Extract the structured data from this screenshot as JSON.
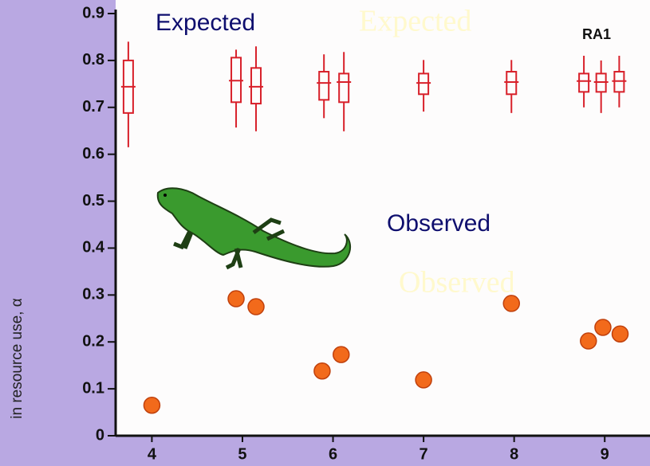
{
  "chart_data": {
    "type": "box",
    "y_label": "in resource use, α",
    "annotation": "RA1",
    "xlim": [
      3.6,
      9.5
    ],
    "ylim": [
      0,
      0.9
    ],
    "xticks": [
      4,
      5,
      6,
      7,
      8,
      9
    ],
    "yticks": [
      0,
      0.1,
      0.2,
      0.3,
      0.4,
      0.5,
      0.6,
      0.7,
      0.8,
      0.9
    ],
    "series": [
      {
        "name": "Expected",
        "type": "box",
        "color": "#d8202a",
        "x": [
          3.74,
          4.93,
          5.15,
          5.9,
          6.12,
          7.0,
          7.97,
          8.77,
          8.96,
          9.16
        ],
        "whislo": [
          0.615,
          0.657,
          0.649,
          0.677,
          0.649,
          0.691,
          0.688,
          0.7,
          0.688,
          0.7
        ],
        "q1": [
          0.688,
          0.711,
          0.708,
          0.716,
          0.711,
          0.728,
          0.728,
          0.733,
          0.733,
          0.733
        ],
        "med": [
          0.744,
          0.757,
          0.744,
          0.752,
          0.754,
          0.752,
          0.754,
          0.756,
          0.754,
          0.756
        ],
        "q3": [
          0.8,
          0.806,
          0.784,
          0.776,
          0.772,
          0.772,
          0.776,
          0.772,
          0.772,
          0.776
        ],
        "whishi": [
          0.84,
          0.823,
          0.83,
          0.813,
          0.818,
          0.801,
          0.801,
          0.81,
          0.8,
          0.81
        ]
      },
      {
        "name": "Observed",
        "type": "scatter",
        "color": "#f26a1b",
        "x": [
          4.0,
          4.93,
          5.15,
          5.88,
          6.09,
          7.0,
          7.97,
          8.82,
          8.98,
          9.17
        ],
        "values": [
          0.065,
          0.292,
          0.275,
          0.138,
          0.173,
          0.119,
          0.282,
          0.202,
          0.231,
          0.217
        ]
      }
    ]
  }
}
